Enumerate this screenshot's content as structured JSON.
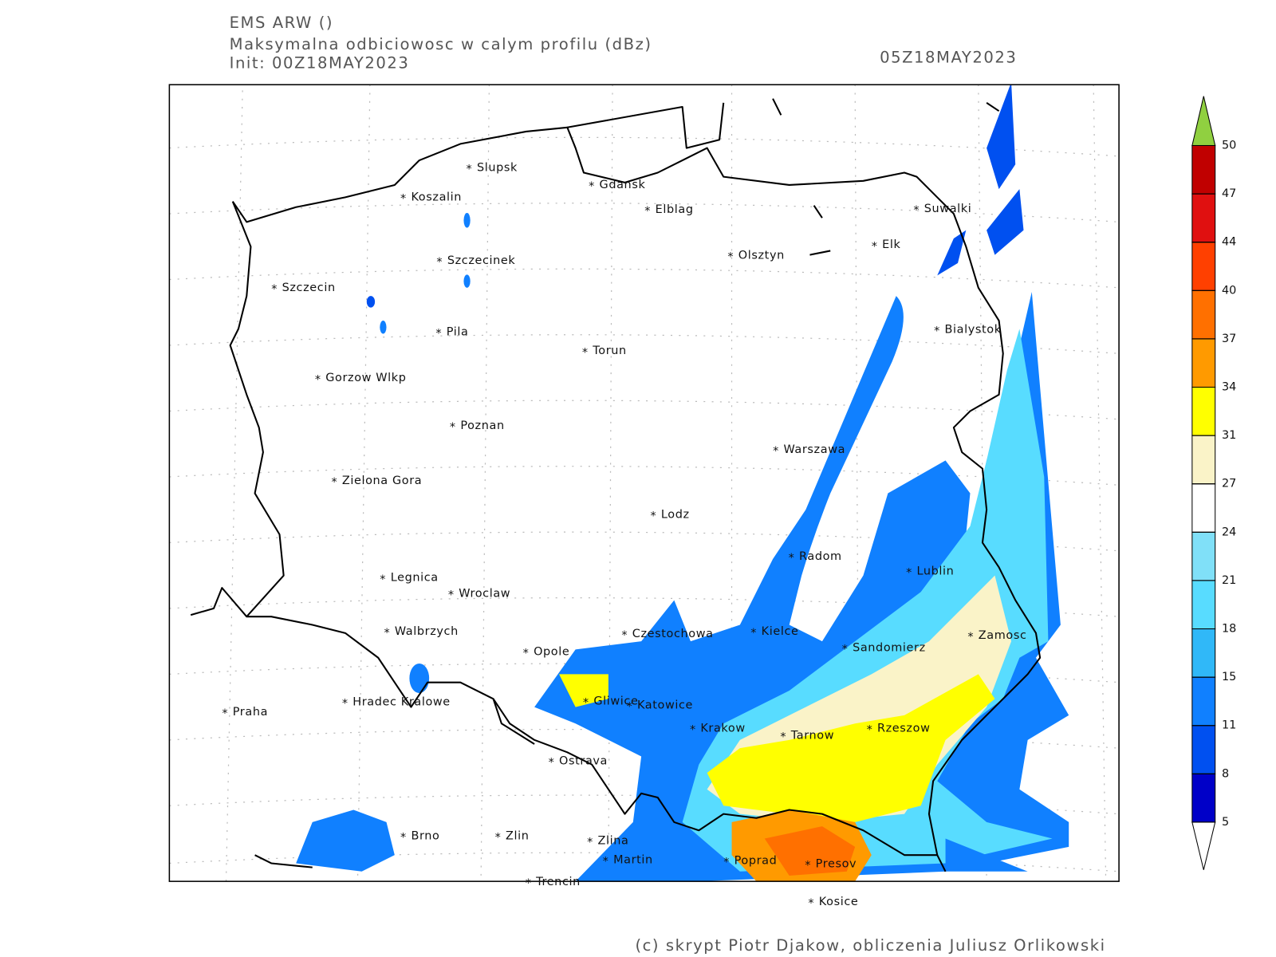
{
  "header": {
    "model": "EMS ARW ()",
    "field": "Maksymalna odbiciowosc w calym profilu (dBz)",
    "init": "Init: 00Z18MAY2023",
    "valid": "05Z18MAY2023"
  },
  "footer": "(c) skrypt Piotr Djakow, obliczenia Juliusz Orlikowski",
  "cities": [
    "Slupsk",
    "Koszalin",
    "Gdansk",
    "Elblag",
    "Suwalki",
    "Szczecinek",
    "Olsztyn",
    "Elk",
    "Szczecin",
    "Pila",
    "Torun",
    "Bialystok",
    "Gorzow Wlkp",
    "Poznan",
    "Warszawa",
    "Zielona Gora",
    "Lodz",
    "Radom",
    "Lublin",
    "Legnica",
    "Wroclaw",
    "Walbrzych",
    "Czestochowa",
    "Kielce",
    "Zamosc",
    "Opole",
    "Sandomierz",
    "Praha",
    "Hradec Kralowe",
    "Gliwice",
    "Katowice",
    "Krakow",
    "Tarnow",
    "Rzeszow",
    "Ostrava",
    "Brno",
    "Zlin",
    "Zlina",
    "Martin",
    "Poprad",
    "Presov",
    "Trencin",
    "Kosice"
  ],
  "colorbar": {
    "levels": [
      5,
      8,
      11,
      15,
      18,
      21,
      24,
      27,
      31,
      34,
      37,
      40,
      44,
      47,
      50
    ],
    "colors": [
      "#0000c8",
      "#0050f0",
      "#1080ff",
      "#30b8f8",
      "#58dcff",
      "#80e0f8",
      "#ffffff",
      "#faf3c8",
      "#ffff00",
      "#ff9a00",
      "#ff7000",
      "#ff4000",
      "#e01010",
      "#c00000"
    ],
    "over_color": "#90d040",
    "under_color": "#ffffff"
  }
}
